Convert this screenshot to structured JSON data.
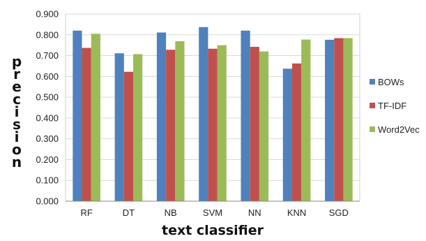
{
  "chart_data": {
    "type": "bar",
    "categories": [
      "RF",
      "DT",
      "NB",
      "SVM",
      "NN",
      "KNN",
      "SGD"
    ],
    "series": [
      {
        "name": "BOWs",
        "color": "#4F81BD",
        "values": [
          0.82,
          0.711,
          0.811,
          0.837,
          0.82,
          0.637,
          0.776
        ]
      },
      {
        "name": "TF-IDF",
        "color": "#C0504D",
        "values": [
          0.737,
          0.622,
          0.728,
          0.733,
          0.742,
          0.662,
          0.784
        ]
      },
      {
        "name": "Word2Vec",
        "color": "#9BBB59",
        "values": [
          0.805,
          0.707,
          0.769,
          0.75,
          0.72,
          0.777,
          0.784
        ]
      }
    ],
    "xlabel": "text classifier",
    "ylabel": "precision",
    "ylim": [
      0,
      0.9
    ],
    "yticks": [
      "0.000",
      "0.100",
      "0.200",
      "0.300",
      "0.400",
      "0.500",
      "0.600",
      "0.700",
      "0.800",
      "0.900"
    ],
    "grid": true,
    "legend_position": "right"
  }
}
